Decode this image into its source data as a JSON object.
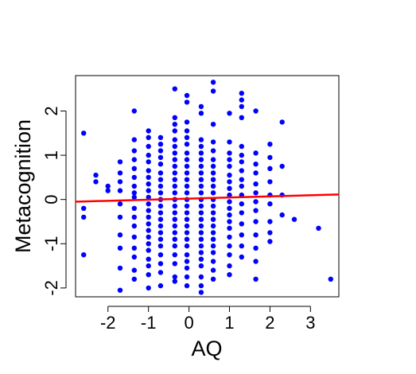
{
  "chart_data": {
    "type": "scatter",
    "title": "",
    "xlabel": "AQ",
    "ylabel": "Metacognition",
    "xlim": [
      -2.8,
      3.7
    ],
    "ylim": [
      -2.2,
      2.8
    ],
    "xticks": [
      -2,
      -1,
      0,
      1,
      2,
      3
    ],
    "xtick_labels": [
      "-2",
      "-1",
      "0",
      "1",
      "2",
      "3"
    ],
    "yticks": [
      -2,
      -1,
      0,
      1,
      2
    ],
    "ytick_labels": [
      "-2",
      "-1",
      "0",
      "1",
      "2"
    ],
    "point_color": "#0000ff",
    "line_color": "#ff0000",
    "regression_line": {
      "intercept": 0.02,
      "slope": 0.025
    },
    "grid": false,
    "legend": "none",
    "series": [
      {
        "x_levels": [
          -2.6,
          -2.3,
          -2.0,
          -1.7,
          -1.35,
          -1.0,
          -0.7,
          -0.35,
          -0.05,
          0.3,
          0.6,
          1.0,
          1.3,
          1.65,
          2.0,
          2.3,
          2.6,
          3.2,
          3.5
        ],
        "points": [
          [
            -2.6,
            1.5
          ],
          [
            -2.6,
            -0.2
          ],
          [
            -2.6,
            -0.4
          ],
          [
            -2.6,
            -1.25
          ],
          [
            -2.3,
            0.55
          ],
          [
            -2.3,
            0.4
          ],
          [
            -2.0,
            0.3
          ],
          [
            -2.0,
            0.2
          ],
          [
            -1.7,
            0.85
          ],
          [
            -1.7,
            0.6
          ],
          [
            -1.7,
            0.4
          ],
          [
            -1.7,
            0.2
          ],
          [
            -1.7,
            -0.1
          ],
          [
            -1.7,
            -0.4
          ],
          [
            -1.7,
            -0.8
          ],
          [
            -1.7,
            -1.1
          ],
          [
            -1.7,
            -1.55
          ],
          [
            -1.7,
            -2.05
          ],
          [
            -1.35,
            2.0
          ],
          [
            -1.35,
            1.35
          ],
          [
            -1.35,
            1.1
          ],
          [
            -1.35,
            0.9
          ],
          [
            -1.35,
            0.7
          ],
          [
            -1.35,
            0.5
          ],
          [
            -1.35,
            0.3
          ],
          [
            -1.35,
            0.15
          ],
          [
            -1.35,
            0.05
          ],
          [
            -1.35,
            -0.2
          ],
          [
            -1.35,
            -0.4
          ],
          [
            -1.35,
            -0.6
          ],
          [
            -1.35,
            -0.85
          ],
          [
            -1.35,
            -1.1
          ],
          [
            -1.35,
            -1.3
          ],
          [
            -1.35,
            -1.6
          ],
          [
            -1.35,
            -1.8
          ],
          [
            -1.0,
            1.55
          ],
          [
            -1.0,
            1.4
          ],
          [
            -1.0,
            1.2
          ],
          [
            -1.0,
            1.0
          ],
          [
            -1.0,
            0.85
          ],
          [
            -1.0,
            0.65
          ],
          [
            -1.0,
            0.5
          ],
          [
            -1.0,
            0.35
          ],
          [
            -1.0,
            0.2
          ],
          [
            -1.0,
            0.05
          ],
          [
            -1.0,
            -0.1
          ],
          [
            -1.0,
            -0.25
          ],
          [
            -1.0,
            -0.4
          ],
          [
            -1.0,
            -0.55
          ],
          [
            -1.0,
            -0.7
          ],
          [
            -1.0,
            -0.85
          ],
          [
            -1.0,
            -1.0
          ],
          [
            -1.0,
            -1.15
          ],
          [
            -1.0,
            -1.35
          ],
          [
            -1.0,
            -1.5
          ],
          [
            -1.0,
            -1.7
          ],
          [
            -1.0,
            -2.0
          ],
          [
            -0.7,
            1.4
          ],
          [
            -0.7,
            1.25
          ],
          [
            -0.7,
            1.1
          ],
          [
            -0.7,
            0.95
          ],
          [
            -0.7,
            0.8
          ],
          [
            -0.7,
            0.6
          ],
          [
            -0.7,
            0.45
          ],
          [
            -0.7,
            0.3
          ],
          [
            -0.7,
            0.15
          ],
          [
            -0.7,
            0.0
          ],
          [
            -0.7,
            -0.15
          ],
          [
            -0.7,
            -0.3
          ],
          [
            -0.7,
            -0.45
          ],
          [
            -0.7,
            -0.6
          ],
          [
            -0.7,
            -0.75
          ],
          [
            -0.7,
            -0.9
          ],
          [
            -0.7,
            -1.05
          ],
          [
            -0.7,
            -1.25
          ],
          [
            -0.7,
            -1.45
          ],
          [
            -0.7,
            -1.65
          ],
          [
            -0.7,
            -1.95
          ],
          [
            -0.35,
            2.5
          ],
          [
            -0.35,
            1.85
          ],
          [
            -0.35,
            1.7
          ],
          [
            -0.35,
            1.55
          ],
          [
            -0.35,
            1.35
          ],
          [
            -0.35,
            1.2
          ],
          [
            -0.35,
            1.05
          ],
          [
            -0.35,
            0.9
          ],
          [
            -0.35,
            0.75
          ],
          [
            -0.35,
            0.6
          ],
          [
            -0.35,
            0.45
          ],
          [
            -0.35,
            0.3
          ],
          [
            -0.35,
            0.15
          ],
          [
            -0.35,
            0.0
          ],
          [
            -0.35,
            -0.15
          ],
          [
            -0.35,
            -0.3
          ],
          [
            -0.35,
            -0.45
          ],
          [
            -0.35,
            -0.6
          ],
          [
            -0.35,
            -0.75
          ],
          [
            -0.35,
            -0.9
          ],
          [
            -0.35,
            -1.05
          ],
          [
            -0.35,
            -1.25
          ],
          [
            -0.35,
            -1.45
          ],
          [
            -0.35,
            -1.75
          ],
          [
            -0.35,
            -1.85
          ],
          [
            -0.05,
            2.35
          ],
          [
            -0.05,
            2.2
          ],
          [
            -0.05,
            1.75
          ],
          [
            -0.05,
            1.55
          ],
          [
            -0.05,
            1.4
          ],
          [
            -0.05,
            1.25
          ],
          [
            -0.05,
            1.05
          ],
          [
            -0.05,
            0.9
          ],
          [
            -0.05,
            0.75
          ],
          [
            -0.05,
            0.6
          ],
          [
            -0.05,
            0.45
          ],
          [
            -0.05,
            0.3
          ],
          [
            -0.05,
            0.15
          ],
          [
            -0.05,
            0.0
          ],
          [
            -0.05,
            -0.15
          ],
          [
            -0.05,
            -0.3
          ],
          [
            -0.05,
            -0.45
          ],
          [
            -0.05,
            -0.6
          ],
          [
            -0.05,
            -0.75
          ],
          [
            -0.05,
            -0.9
          ],
          [
            -0.05,
            -1.05
          ],
          [
            -0.05,
            -1.25
          ],
          [
            -0.05,
            -1.4
          ],
          [
            -0.05,
            -1.55
          ],
          [
            -0.05,
            -1.75
          ],
          [
            -0.05,
            -1.95
          ],
          [
            0.3,
            2.1
          ],
          [
            0.3,
            1.95
          ],
          [
            0.3,
            1.35
          ],
          [
            0.3,
            1.2
          ],
          [
            0.3,
            1.05
          ],
          [
            0.3,
            0.9
          ],
          [
            0.3,
            0.75
          ],
          [
            0.3,
            0.6
          ],
          [
            0.3,
            0.45
          ],
          [
            0.3,
            0.3
          ],
          [
            0.3,
            0.15
          ],
          [
            0.3,
            0.0
          ],
          [
            0.3,
            -0.15
          ],
          [
            0.3,
            -0.3
          ],
          [
            0.3,
            -0.45
          ],
          [
            0.3,
            -0.6
          ],
          [
            0.3,
            -0.75
          ],
          [
            0.3,
            -0.9
          ],
          [
            0.3,
            -1.05
          ],
          [
            0.3,
            -1.2
          ],
          [
            0.3,
            -1.35
          ],
          [
            0.3,
            -1.5
          ],
          [
            0.3,
            -1.75
          ],
          [
            0.3,
            -1.95
          ],
          [
            0.3,
            -2.1
          ],
          [
            0.6,
            2.65
          ],
          [
            0.6,
            2.45
          ],
          [
            0.6,
            1.7
          ],
          [
            0.6,
            1.3
          ],
          [
            0.6,
            1.1
          ],
          [
            0.6,
            0.9
          ],
          [
            0.6,
            0.75
          ],
          [
            0.6,
            0.6
          ],
          [
            0.6,
            0.45
          ],
          [
            0.6,
            0.3
          ],
          [
            0.6,
            0.15
          ],
          [
            0.6,
            0.0
          ],
          [
            0.6,
            -0.15
          ],
          [
            0.6,
            -0.3
          ],
          [
            0.6,
            -0.45
          ],
          [
            0.6,
            -0.6
          ],
          [
            0.6,
            -0.75
          ],
          [
            0.6,
            -0.9
          ],
          [
            0.6,
            -1.05
          ],
          [
            0.6,
            -1.2
          ],
          [
            0.6,
            -1.4
          ],
          [
            0.6,
            -1.6
          ],
          [
            0.6,
            -1.8
          ],
          [
            1.0,
            1.95
          ],
          [
            1.0,
            1.3
          ],
          [
            1.0,
            1.05
          ],
          [
            1.0,
            0.9
          ],
          [
            1.0,
            0.75
          ],
          [
            1.0,
            0.55
          ],
          [
            1.0,
            0.4
          ],
          [
            1.0,
            0.25
          ],
          [
            1.0,
            0.1
          ],
          [
            1.0,
            -0.05
          ],
          [
            1.0,
            -0.2
          ],
          [
            1.0,
            -0.35
          ],
          [
            1.0,
            -0.5
          ],
          [
            1.0,
            -0.65
          ],
          [
            1.0,
            -0.85
          ],
          [
            1.0,
            -1.05
          ],
          [
            1.0,
            -1.25
          ],
          [
            1.0,
            -1.5
          ],
          [
            1.0,
            -1.7
          ],
          [
            1.3,
            2.4
          ],
          [
            1.3,
            2.25
          ],
          [
            1.3,
            2.1
          ],
          [
            1.3,
            1.85
          ],
          [
            1.3,
            1.2
          ],
          [
            1.3,
            1.0
          ],
          [
            1.3,
            0.85
          ],
          [
            1.3,
            0.65
          ],
          [
            1.3,
            0.45
          ],
          [
            1.3,
            0.3
          ],
          [
            1.3,
            0.1
          ],
          [
            1.3,
            -0.1
          ],
          [
            1.3,
            -0.3
          ],
          [
            1.3,
            -0.55
          ],
          [
            1.3,
            -0.8
          ],
          [
            1.3,
            -1.05
          ],
          [
            1.3,
            -1.3
          ],
          [
            1.65,
            2.0
          ],
          [
            1.65,
            1.05
          ],
          [
            1.65,
            0.8
          ],
          [
            1.65,
            0.6
          ],
          [
            1.65,
            0.35
          ],
          [
            1.65,
            0.15
          ],
          [
            1.65,
            -0.05
          ],
          [
            1.65,
            -0.25
          ],
          [
            1.65,
            -0.5
          ],
          [
            1.65,
            -0.8
          ],
          [
            1.65,
            -1.1
          ],
          [
            1.65,
            -1.4
          ],
          [
            1.65,
            -1.8
          ],
          [
            2.0,
            1.25
          ],
          [
            2.0,
            0.95
          ],
          [
            2.0,
            0.7
          ],
          [
            2.0,
            0.4
          ],
          [
            2.0,
            0.1
          ],
          [
            2.0,
            -0.1
          ],
          [
            2.0,
            -0.5
          ],
          [
            2.0,
            -0.75
          ],
          [
            2.0,
            -0.95
          ],
          [
            2.3,
            1.75
          ],
          [
            2.3,
            0.75
          ],
          [
            2.3,
            0.1
          ],
          [
            2.3,
            -0.35
          ],
          [
            2.6,
            -0.45
          ],
          [
            3.2,
            -0.65
          ],
          [
            3.5,
            -1.8
          ]
        ]
      }
    ]
  }
}
